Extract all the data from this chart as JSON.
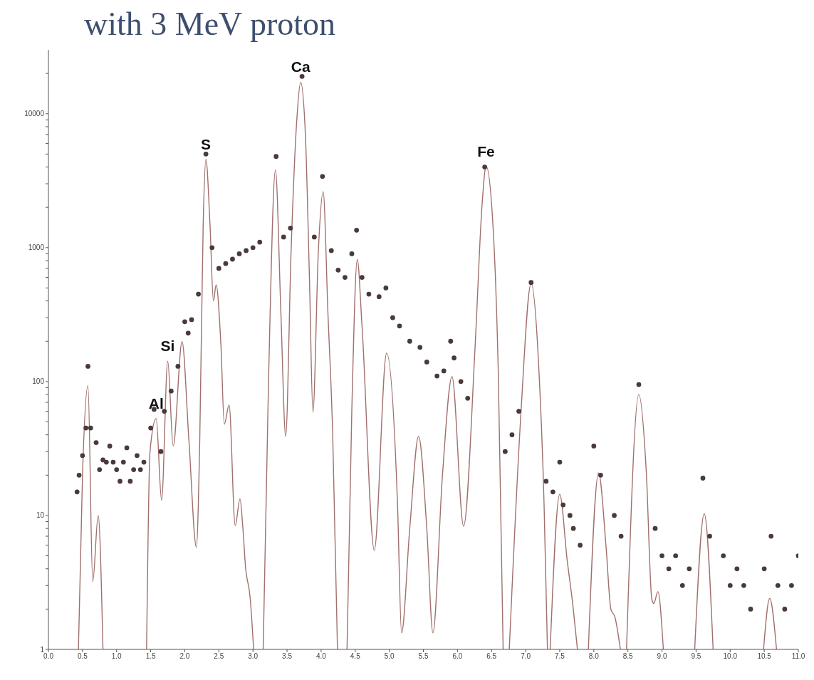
{
  "chart_data": {
    "type": "line",
    "title": "with 3 MeV proton",
    "xlim": [
      0,
      11
    ],
    "xticks": [
      {
        "value": 0,
        "label": "0.0"
      },
      {
        "value": 0.5,
        "label": "0.5"
      },
      {
        "value": 1,
        "label": "1.0"
      },
      {
        "value": 1.5,
        "label": "1.5"
      },
      {
        "value": 2,
        "label": "2.0"
      },
      {
        "value": 2.5,
        "label": "2.5"
      },
      {
        "value": 3,
        "label": "3.0"
      },
      {
        "value": 3.5,
        "label": "3.5"
      },
      {
        "value": 4,
        "label": "4.0"
      },
      {
        "value": 4.5,
        "label": "4.5"
      },
      {
        "value": 5,
        "label": "5.0"
      },
      {
        "value": 5.5,
        "label": "5.5"
      },
      {
        "value": 6,
        "label": "6.0"
      },
      {
        "value": 6.5,
        "label": "6.5"
      },
      {
        "value": 7,
        "label": "7.0"
      },
      {
        "value": 7.5,
        "label": "7.5"
      },
      {
        "value": 8,
        "label": "8.0"
      },
      {
        "value": 8.5,
        "label": "8.5"
      },
      {
        "value": 9,
        "label": "9.0"
      },
      {
        "value": 9.5,
        "label": "9.5"
      },
      {
        "value": 10,
        "label": "10.0"
      },
      {
        "value": 10.5,
        "label": "10.5"
      },
      {
        "value": 11,
        "label": "11.0"
      }
    ],
    "ylim": [
      1,
      30000
    ],
    "log": "y",
    "yticks": [
      1,
      {
        "value": 2,
        "label": null
      },
      {
        "value": 3,
        "label": null
      },
      {
        "value": 4,
        "label": null
      },
      {
        "value": 5,
        "label": null
      },
      {
        "value": 6,
        "label": null
      },
      {
        "value": 7,
        "label": null
      },
      {
        "value": 8,
        "label": null
      },
      {
        "value": 9,
        "label": null
      },
      10,
      {
        "value": 20,
        "label": null
      },
      {
        "value": 30,
        "label": null
      },
      {
        "value": 40,
        "label": null
      },
      {
        "value": 50,
        "label": null
      },
      {
        "value": 60,
        "label": null
      },
      {
        "value": 70,
        "label": null
      },
      {
        "value": 80,
        "label": null
      },
      {
        "value": 90,
        "label": null
      },
      100,
      {
        "value": 200,
        "label": null
      },
      {
        "value": 300,
        "label": null
      },
      {
        "value": 400,
        "label": null
      },
      {
        "value": 500,
        "label": null
      },
      {
        "value": 600,
        "label": null
      },
      {
        "value": 700,
        "label": null
      },
      {
        "value": 800,
        "label": null
      },
      {
        "value": 900,
        "label": null
      },
      1000,
      {
        "value": 2000,
        "label": null
      },
      {
        "value": 3000,
        "label": null
      },
      {
        "value": 4000,
        "label": null
      },
      {
        "value": 5000,
        "label": null
      },
      {
        "value": 6000,
        "label": null
      },
      {
        "value": 7000,
        "label": null
      },
      {
        "value": 8000,
        "label": null
      },
      {
        "value": 9000,
        "label": null
      },
      10000,
      {
        "value": 20000,
        "label": null
      }
    ],
    "grid": false,
    "series": [
      {
        "color": "#a0706c",
        "marker": "none",
        "x": [
          0.44,
          0.5,
          0.58,
          0.65,
          0.73,
          0.8,
          1.1,
          1.44,
          1.49,
          1.58,
          1.66,
          1.75,
          1.83,
          1.96,
          2.06,
          2.17,
          2.22,
          2.27,
          2.31,
          2.37,
          2.42,
          2.46,
          2.53,
          2.58,
          2.65,
          2.74,
          2.81,
          2.85,
          2.89,
          2.96,
          3.01,
          3.1,
          3.15,
          3.23,
          3.33,
          3.41,
          3.48,
          3.56,
          3.64,
          3.7,
          3.77,
          3.83,
          3.88,
          3.96,
          4.03,
          4.1,
          4.17,
          4.24,
          4.3,
          4.38,
          4.45,
          4.53,
          4.6,
          4.78,
          4.96,
          5.12,
          5.18,
          5.3,
          5.43,
          5.55,
          5.64,
          5.78,
          5.92,
          6.09,
          6.26,
          6.36,
          6.42,
          6.52,
          6.6,
          6.67,
          6.72,
          6.76,
          6.93,
          7.08,
          7.19,
          7.27,
          7.32,
          7.34,
          7.36,
          7.5,
          7.61,
          7.69,
          7.76,
          7.85,
          7.92,
          8.07,
          8.18,
          8.25,
          8.31,
          8.39,
          8.44,
          8.48,
          8.66,
          8.77,
          8.85,
          8.88,
          8.94,
          9.02,
          9.3,
          9.48,
          9.62,
          9.75,
          10.1,
          10.49,
          10.58,
          10.68
        ],
        "values": [
          1,
          20,
          93,
          3.2,
          10,
          1,
          null,
          1,
          30,
          53,
          13,
          142,
          33,
          199,
          37,
          5.8,
          37,
          1490,
          4570,
          1490,
          400,
          528,
          188,
          48,
          67,
          8.4,
          13.3,
          8.4,
          4.2,
          2.4,
          1,
          null,
          1,
          109,
          3800,
          324,
          39,
          962,
          8500,
          17200,
          6830,
          558,
          59,
          962,
          2620,
          324,
          40,
          1,
          null,
          1,
          60,
          818,
          260,
          5.5,
          163,
          12.4,
          1.33,
          8,
          39,
          8,
          1.33,
          20,
          109,
          8.3,
          188,
          2060,
          4050,
          1490,
          109,
          1,
          null,
          1,
          57,
          541,
          136,
          12.3,
          1,
          null,
          1,
          14.4,
          4.6,
          2.2,
          1,
          null,
          1,
          20.8,
          5.8,
          2,
          1.74,
          1,
          null,
          1,
          80,
          21,
          2.4,
          2.2,
          2.7,
          1,
          null,
          1,
          10.3,
          1,
          null,
          1,
          2.4,
          1
        ]
      },
      {
        "type": "scatter",
        "color": "#4a3a3a",
        "marker": "circle",
        "x": [
          0.42,
          0.45,
          0.5,
          0.55,
          0.58,
          0.62,
          0.7,
          0.75,
          0.8,
          0.85,
          0.9,
          0.95,
          1.0,
          1.05,
          1.1,
          1.15,
          1.2,
          1.25,
          1.3,
          1.35,
          1.4,
          1.5,
          1.55,
          1.65,
          1.7,
          1.8,
          1.9,
          2.0,
          2.05,
          2.1,
          2.2,
          2.31,
          2.4,
          2.5,
          2.6,
          2.7,
          2.8,
          2.9,
          3.0,
          3.1,
          3.34,
          3.45,
          3.55,
          3.72,
          3.9,
          4.02,
          4.15,
          4.25,
          4.35,
          4.45,
          4.52,
          4.6,
          4.7,
          4.85,
          4.95,
          5.05,
          5.15,
          5.3,
          5.45,
          5.55,
          5.7,
          5.8,
          5.9,
          5.95,
          6.05,
          6.15,
          6.4,
          6.7,
          6.8,
          6.9,
          7.08,
          7.3,
          7.4,
          7.5,
          7.55,
          7.65,
          7.7,
          7.8,
          8.0,
          8.1,
          8.3,
          8.4,
          8.66,
          8.9,
          9.0,
          9.1,
          9.2,
          9.3,
          9.4,
          9.6,
          9.7,
          9.9,
          10.0,
          10.1,
          10.2,
          10.3,
          10.5,
          10.6,
          10.7,
          10.8,
          10.9,
          11.0
        ],
        "values": [
          15,
          20,
          28,
          45,
          130,
          45,
          35,
          22,
          26,
          25,
          33,
          25,
          22,
          18,
          25,
          32,
          18,
          22,
          28,
          22,
          25,
          45,
          62,
          30,
          60,
          85,
          130,
          280,
          230,
          290,
          450,
          5000,
          1000,
          700,
          760,
          820,
          900,
          950,
          1000,
          1100,
          4800,
          1200,
          1400,
          19000,
          1200,
          3400,
          950,
          680,
          600,
          900,
          1350,
          600,
          450,
          430,
          500,
          300,
          260,
          200,
          180,
          140,
          110,
          120,
          200,
          150,
          100,
          75,
          4000,
          30,
          40,
          60,
          550,
          18,
          15,
          25,
          12,
          10,
          8,
          6,
          33,
          20,
          10,
          7,
          95,
          8,
          5,
          4,
          5,
          3,
          4,
          19,
          7,
          5,
          3,
          4,
          3,
          2,
          4,
          7,
          3,
          2,
          3,
          5
        ]
      }
    ],
    "annotations": [
      {
        "text": "Al",
        "x": 1.58,
        "y": 53
      },
      {
        "text": "Si",
        "x": 1.75,
        "y": 142
      },
      {
        "text": "S",
        "x": 2.31,
        "y": 4570
      },
      {
        "text": "Ca",
        "x": 3.7,
        "y": 17200
      },
      {
        "text": "Fe",
        "x": 6.42,
        "y": 4050
      }
    ]
  }
}
